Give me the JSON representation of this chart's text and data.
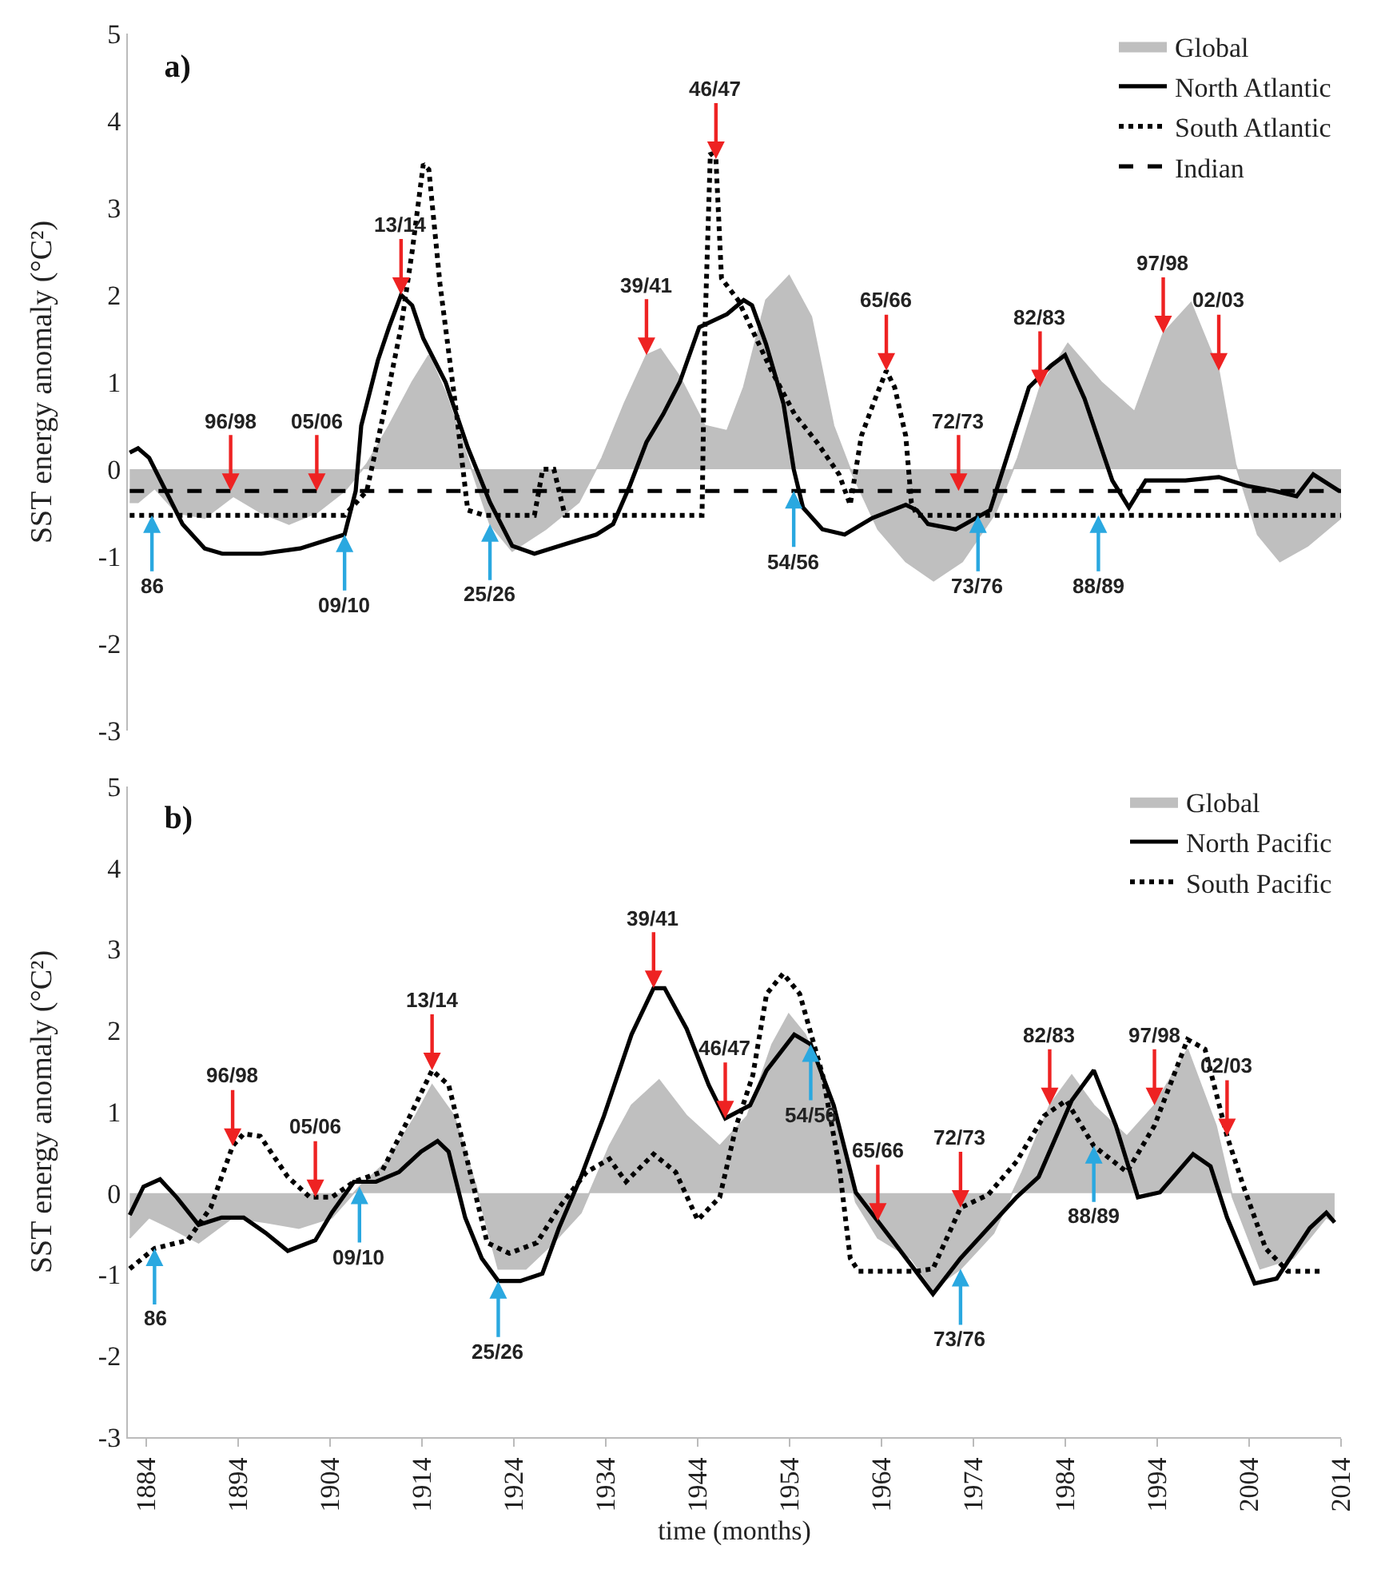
{
  "chart_data": [
    {
      "type": "line",
      "title": "a)",
      "ylabel": "SST energy anomaly (°C²)",
      "xlim": [
        1882,
        2013
      ],
      "xticks": [
        1884,
        1894,
        1904,
        1914,
        1924,
        1934,
        1944,
        1954,
        1964,
        1974,
        1984,
        1994,
        2004
      ],
      "ylim": [
        -3,
        5
      ],
      "yticks": [
        -3,
        -2,
        -1,
        0,
        1,
        2,
        3,
        4,
        5
      ],
      "tick_labels": "y",
      "legend": "top right",
      "series": [
        {
          "name": "Global",
          "type": "area",
          "color": "#bfbfbf",
          "x": [
            1882.2,
            1883.1,
            1884.9,
            1887.3,
            1890.3,
            1893.4,
            1896.4,
            1899.4,
            1902.4,
            1905.4,
            1907.8,
            1910.2,
            1912.7,
            1914.5,
            1916.3,
            1918.7,
            1921.1,
            1923.5,
            1927.1,
            1930.7,
            1933.2,
            1935.6,
            1938.0,
            1939.5,
            1941.6,
            1944.3,
            1946.7,
            1948.5,
            1950.9,
            1953.4,
            1955.8,
            1958.2,
            1960.0,
            1963.0,
            1966.0,
            1969.0,
            1972.1,
            1975.7,
            1978.1,
            1980.5,
            1983.5,
            1987.1,
            1990.7,
            1993.8,
            1996.8,
            1999.8,
            2001.6,
            2004.0,
            2006.4,
            2009.4,
            2013.0
          ],
          "values": [
            -0.38,
            -0.38,
            -0.22,
            -0.5,
            -0.56,
            -0.31,
            -0.5,
            -0.63,
            -0.5,
            -0.25,
            0.06,
            0.5,
            1.0,
            1.31,
            0.88,
            0.13,
            -0.63,
            -0.94,
            -0.69,
            -0.38,
            0.13,
            0.75,
            1.31,
            1.38,
            1.06,
            0.5,
            0.44,
            0.94,
            1.94,
            2.22,
            1.75,
            0.5,
            0,
            -0.69,
            -1.06,
            -1.28,
            -1.06,
            -0.5,
            0.13,
            0.94,
            1.44,
            1.0,
            0.66,
            1.56,
            1.91,
            1.13,
            0.06,
            -0.75,
            -1.06,
            -0.88,
            -0.56
          ]
        },
        {
          "name": "North Atlantic",
          "type": "line",
          "line_style": "solid",
          "color": "#000000",
          "x": [
            1882.2,
            1883.1,
            1884.3,
            1886.1,
            1887.9,
            1890.3,
            1892.2,
            1896.4,
            1900.6,
            1903.6,
            1905.4,
            1906.6,
            1907.2,
            1909.0,
            1910.2,
            1911.5,
            1912.7,
            1913.9,
            1916.3,
            1918.7,
            1921.1,
            1923.5,
            1925.9,
            1929.5,
            1932.6,
            1934.4,
            1936.2,
            1938.0,
            1939.8,
            1941.6,
            1943.7,
            1946.7,
            1948.5,
            1949.4,
            1950.9,
            1952.8,
            1953.9,
            1954.9,
            1957.0,
            1959.4,
            1962.4,
            1966.0,
            1967.2,
            1968.4,
            1971.4,
            1975.1,
            1976.9,
            1979.3,
            1981.7,
            1983.2,
            1985.3,
            1988.3,
            1990.1,
            1991.9,
            1996.2,
            1999.8,
            2002.8,
            2005.8,
            2008.2,
            2010.0,
            2012.8
          ],
          "values": [
            0.19,
            0.24,
            0.13,
            -0.25,
            -0.63,
            -0.91,
            -0.97,
            -0.97,
            -0.91,
            -0.81,
            -0.75,
            -0.25,
            0.5,
            1.25,
            1.63,
            2.0,
            1.88,
            1.5,
            1.0,
            0.25,
            -0.38,
            -0.88,
            -0.97,
            -0.85,
            -0.75,
            -0.63,
            -0.19,
            0.31,
            0.63,
            1.0,
            1.63,
            1.78,
            1.94,
            1.88,
            1.44,
            0.75,
            0,
            -0.44,
            -0.69,
            -0.75,
            -0.56,
            -0.41,
            -0.47,
            -0.63,
            -0.69,
            -0.47,
            0.13,
            0.94,
            1.19,
            1.31,
            0.81,
            -0.13,
            -0.44,
            -0.13,
            -0.13,
            -0.09,
            -0.19,
            -0.25,
            -0.31,
            -0.06,
            -0.25
          ]
        },
        {
          "name": "South Atlantic",
          "type": "line",
          "line_style": "dotted",
          "color": "#000000",
          "x": [
            1882.2,
            1905.4,
            1907.8,
            1909.6,
            1911.5,
            1912.7,
            1913.9,
            1914.5,
            1915.7,
            1917.5,
            1918.7,
            1920.5,
            1925.9,
            1926.8,
            1928.0,
            1929.2,
            1944.0,
            1944.3,
            1944.9,
            1945.5,
            1946.1,
            1947.9,
            1951.5,
            1954.0,
            1956.4,
            1958.8,
            1960.0,
            1961.2,
            1962.7,
            1963.9,
            1964.8,
            1966.0,
            1966.6,
            1967.2,
            2013.0
          ],
          "values": [
            -0.53,
            -0.53,
            -0.25,
            0.63,
            1.63,
            2.5,
            3.5,
            3.44,
            2.13,
            0.63,
            -0.47,
            -0.53,
            -0.53,
            0,
            0,
            -0.53,
            -0.53,
            1.56,
            3.63,
            3.56,
            2.19,
            1.94,
            1.13,
            0.63,
            0.31,
            -0.06,
            -0.41,
            0.38,
            0.81,
            1.13,
            0.94,
            0.38,
            -0.38,
            -0.53,
            -0.53
          ]
        },
        {
          "name": "Indian",
          "type": "line",
          "line_style": "dashed",
          "color": "#000000",
          "x": [
            1882.2,
            2013.0
          ],
          "values": [
            -0.25,
            -0.25
          ]
        }
      ],
      "annotations": [
        {
          "text": "96/98",
          "x": 1893.1,
          "y": -0.25
        },
        {
          "text": "05/06",
          "x": 1902.4,
          "y": -0.25
        },
        {
          "text": "13/14",
          "x": 1911.5,
          "y": 2.0
        },
        {
          "text": "39/41",
          "x": 1938.0,
          "y": 1.31
        },
        {
          "text": "46/47",
          "x": 1945.5,
          "y": 3.56
        },
        {
          "text": "65/66",
          "x": 1963.9,
          "y": 1.13
        },
        {
          "text": "72/73",
          "x": 1971.7,
          "y": -0.25
        },
        {
          "text": "82/83",
          "x": 1980.5,
          "y": 0.94
        },
        {
          "text": "97/98",
          "x": 1993.8,
          "y": 1.56
        },
        {
          "text": "02/03",
          "x": 1999.8,
          "y": 1.13
        },
        {
          "text": "86",
          "x": 1884.6,
          "y": -0.53
        },
        {
          "text": "09/10",
          "x": 1905.4,
          "y": -0.75
        },
        {
          "text": "25/26",
          "x": 1921.1,
          "y": -0.63
        },
        {
          "text": "54/56",
          "x": 1953.9,
          "y": -0.25
        },
        {
          "text": "73/76",
          "x": 1973.8,
          "y": -0.53
        },
        {
          "text": "88/89",
          "x": 1986.8,
          "y": -0.53
        }
      ]
    },
    {
      "type": "line",
      "title": "b)",
      "xlabel": "time (months)",
      "ylabel": "SST energy anomaly (°C²)",
      "xlim": [
        1882,
        2014
      ],
      "xticks": [
        1884,
        1894,
        1904,
        1914,
        1924,
        1934,
        1944,
        1954,
        1964,
        1974,
        1984,
        1994,
        2004,
        2014
      ],
      "ylim": [
        -3,
        5
      ],
      "yticks": [
        -3,
        -2,
        -1,
        0,
        1,
        2,
        3,
        4,
        5
      ],
      "legend": "top right",
      "series": [
        {
          "name": "Global",
          "type": "area",
          "color": "#bfbfbf",
          "x": [
            1882.2,
            1884.3,
            1886.7,
            1889.7,
            1893.4,
            1897.0,
            1900.6,
            1904.2,
            1907.2,
            1910.2,
            1913.3,
            1915.1,
            1917.5,
            1919.9,
            1922.3,
            1925.3,
            1928.3,
            1931.3,
            1934.4,
            1936.8,
            1939.8,
            1942.8,
            1946.4,
            1949.4,
            1952.1,
            1953.9,
            1955.7,
            1958.8,
            1961.2,
            1963.6,
            1967.2,
            1969.6,
            1972.6,
            1976.2,
            1979.3,
            1982.3,
            1984.7,
            1987.1,
            1990.7,
            1993.7,
            1997.3,
            2000.4,
            2002.2,
            2005.2,
            2008.8,
            2012.4,
            2013.3
          ],
          "values": [
            -0.55,
            -0.3,
            -0.43,
            -0.61,
            -0.3,
            -0.36,
            -0.43,
            -0.3,
            0.08,
            0.39,
            0.95,
            1.33,
            0.95,
            0.08,
            -0.93,
            -0.93,
            -0.61,
            -0.24,
            0.58,
            1.08,
            1.39,
            0.95,
            0.58,
            0.95,
            1.83,
            2.2,
            1.95,
            1.08,
            -0.11,
            -0.55,
            -0.8,
            -1.18,
            -0.93,
            -0.49,
            0.26,
            1.08,
            1.45,
            1.08,
            0.7,
            1.08,
            1.77,
            0.83,
            -0.05,
            -0.93,
            -0.8,
            -0.3,
            -0.36
          ]
        },
        {
          "name": "North Pacific",
          "type": "line",
          "line_style": "solid",
          "color": "#000000",
          "x": [
            1882.2,
            1883.7,
            1885.5,
            1887.3,
            1889.7,
            1892.2,
            1894.6,
            1897.0,
            1899.4,
            1902.4,
            1904.2,
            1906.6,
            1909.0,
            1911.5,
            1913.9,
            1915.7,
            1916.9,
            1918.7,
            1920.5,
            1922.3,
            1924.7,
            1927.1,
            1928.9,
            1931.3,
            1933.8,
            1936.8,
            1939.2,
            1940.4,
            1942.8,
            1945.2,
            1947.0,
            1949.7,
            1951.5,
            1954.5,
            1956.3,
            1958.8,
            1961.2,
            1965.4,
            1969.6,
            1972.6,
            1975.6,
            1978.7,
            1981.1,
            1984.7,
            1987.1,
            1989.5,
            1991.9,
            1994.3,
            1997.9,
            1999.8,
            2001.6,
            2004.6,
            2007.0,
            2010.6,
            2012.4,
            2013.3
          ],
          "values": [
            -0.27,
            0.08,
            0.17,
            -0.05,
            -0.39,
            -0.3,
            -0.3,
            -0.49,
            -0.71,
            -0.58,
            -0.24,
            0.14,
            0.14,
            0.26,
            0.51,
            0.64,
            0.51,
            -0.3,
            -0.8,
            -1.08,
            -1.08,
            -0.99,
            -0.43,
            0.2,
            0.95,
            1.95,
            2.52,
            2.52,
            2.02,
            1.33,
            0.92,
            1.08,
            1.51,
            1.95,
            1.83,
            1.08,
            0.01,
            -0.61,
            -1.24,
            -0.8,
            -0.43,
            -0.05,
            0.2,
            1.14,
            1.51,
            0.83,
            -0.05,
            0.01,
            0.48,
            0.33,
            -0.3,
            -1.11,
            -1.05,
            -0.43,
            -0.24,
            -0.36
          ]
        },
        {
          "name": "South Pacific",
          "type": "line",
          "line_style": "dotted",
          "color": "#000000",
          "x": [
            1882.2,
            1884.9,
            1888.5,
            1891.0,
            1893.4,
            1894.6,
            1896.4,
            1899.4,
            1901.8,
            1904.2,
            1906.6,
            1909.6,
            1912.7,
            1915.1,
            1916.9,
            1918.7,
            1921.1,
            1923.5,
            1926.5,
            1928.9,
            1931.9,
            1934.4,
            1936.2,
            1939.2,
            1941.6,
            1944.0,
            1946.4,
            1948.2,
            1950.0,
            1951.5,
            1953.3,
            1955.1,
            1957.6,
            1959.4,
            1960.6,
            1961.5,
            1967.8,
            1969.6,
            1972.6,
            1975.6,
            1978.7,
            1981.7,
            1984.1,
            1987.1,
            1990.7,
            1993.7,
            1997.3,
            1999.2,
            2001.6,
            2003.4,
            2005.8,
            2008.2,
            2012.1
          ],
          "values": [
            -0.93,
            -0.68,
            -0.58,
            -0.18,
            0.58,
            0.73,
            0.7,
            0.2,
            -0.05,
            -0.05,
            0.14,
            0.26,
            0.95,
            1.51,
            1.33,
            0.51,
            -0.61,
            -0.74,
            -0.61,
            -0.18,
            0.26,
            0.42,
            0.14,
            0.48,
            0.26,
            -0.33,
            -0.05,
            0.83,
            1.45,
            2.45,
            2.7,
            2.45,
            1.45,
            0.33,
            -0.8,
            -0.96,
            -0.96,
            -0.93,
            -0.18,
            -0.02,
            0.39,
            0.95,
            1.14,
            0.58,
            0.26,
            0.83,
            1.89,
            1.77,
            0.7,
            0.08,
            -0.68,
            -0.96,
            -0.96
          ]
        }
      ],
      "annotations": [
        {
          "text": "96/98",
          "x": 1893.4,
          "y": 0.58
        },
        {
          "text": "05/06",
          "x": 1902.4,
          "y": -0.05
        },
        {
          "text": "13/14",
          "x": 1915.1,
          "y": 1.51
        },
        {
          "text": "39/41",
          "x": 1939.2,
          "y": 2.52
        },
        {
          "text": "46/47",
          "x": 1947.0,
          "y": 0.92
        },
        {
          "text": "65/66",
          "x": 1963.6,
          "y": -0.34
        },
        {
          "text": "72/73",
          "x": 1972.6,
          "y": -0.18
        },
        {
          "text": "82/83",
          "x": 1982.3,
          "y": 1.08
        },
        {
          "text": "97/98",
          "x": 1993.7,
          "y": 1.08
        },
        {
          "text": "02/03",
          "x": 2001.6,
          "y": 0.7
        },
        {
          "text": "86",
          "x": 1884.9,
          "y": -0.68
        },
        {
          "text": "09/10",
          "x": 1907.2,
          "y": 0.08
        },
        {
          "text": "25/26",
          "x": 1922.3,
          "y": -1.08
        },
        {
          "text": "54/56",
          "x": 1956.3,
          "y": 1.83
        },
        {
          "text": "73/76",
          "x": 1972.6,
          "y": -0.93
        },
        {
          "text": "88/89",
          "x": 1987.1,
          "y": 0.58
        }
      ]
    }
  ]
}
